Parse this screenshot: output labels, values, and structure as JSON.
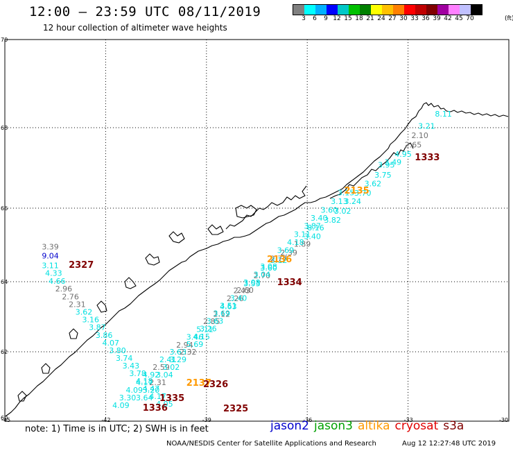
{
  "header": {
    "title": "12:00 — 23:59 UTC 08/11/2019",
    "subtitle": "12 hour collection of altimeter wave heights"
  },
  "scale": {
    "colors": [
      "#808080",
      "#00ffff",
      "#00b0ff",
      "#0000ff",
      "#00c8c8",
      "#00c000",
      "#008000",
      "#ffff00",
      "#ffc000",
      "#ff8000",
      "#ff0000",
      "#c00000",
      "#800000",
      "#a000a0",
      "#ff80ff",
      "#c0c0ff",
      "#000000"
    ],
    "labels": [
      "3",
      "6",
      "9",
      "12",
      "15",
      "18",
      "21",
      "24",
      "27",
      "30",
      "33",
      "36",
      "39",
      "42",
      "45",
      "70"
    ],
    "unit": "(ft)"
  },
  "axes": {
    "lat_labels": [
      "70",
      "68",
      "66",
      "64",
      "62",
      "60"
    ],
    "lon_labels": [
      "-45",
      "-42",
      "-39",
      "-36",
      "-33",
      "-30"
    ]
  },
  "colors": {
    "cyan": "#00e0e0",
    "gray": "#707070",
    "blue": "#0000cc",
    "orange": "#ff9900",
    "darkred": "#800000",
    "green": "#00a000",
    "red": "#e00000"
  },
  "map_data": {
    "observations": [
      {
        "lon": -32.2,
        "lat": 68.25,
        "value": "8.11",
        "color": "cyan"
      },
      {
        "lon": -32.7,
        "lat": 67.97,
        "value": "3.21",
        "color": "cyan"
      },
      {
        "lon": -32.9,
        "lat": 67.74,
        "value": "2.10",
        "color": "gray"
      },
      {
        "lon": -33.1,
        "lat": 67.51,
        "value": "2.65",
        "color": "gray"
      },
      {
        "lon": -33.4,
        "lat": 67.28,
        "value": "4.95",
        "color": "cyan"
      },
      {
        "lon": -33.7,
        "lat": 67.08,
        "value": "3.49",
        "color": "cyan"
      },
      {
        "lon": -33.9,
        "lat": 67.01,
        "value": "3.95",
        "color": "cyan"
      },
      {
        "lon": -34.0,
        "lat": 66.76,
        "value": "3.75",
        "color": "cyan"
      },
      {
        "lon": -34.3,
        "lat": 66.54,
        "value": "3.62",
        "color": "cyan"
      },
      {
        "lon": -34.6,
        "lat": 66.31,
        "value": "3.70",
        "color": "cyan"
      },
      {
        "lon": -34.9,
        "lat": 66.1,
        "value": "3.24",
        "color": "cyan"
      },
      {
        "lon": -35.2,
        "lat": 65.85,
        "value": "3.02",
        "color": "cyan"
      },
      {
        "lon": -35.5,
        "lat": 65.6,
        "value": "3.82",
        "color": "cyan"
      },
      {
        "lon": -36.0,
        "lat": 65.4,
        "value": "8.16",
        "color": "cyan"
      },
      {
        "lon": -36.1,
        "lat": 65.16,
        "value": "3.40",
        "color": "cyan"
      },
      {
        "lon": -36.4,
        "lat": 64.95,
        "value": "1.89",
        "color": "gray"
      },
      {
        "lon": -36.8,
        "lat": 64.72,
        "value": "2.39",
        "color": "gray"
      },
      {
        "lon": -37.1,
        "lat": 64.51,
        "value": "3.12",
        "color": "cyan"
      },
      {
        "lon": -37.4,
        "lat": 64.3,
        "value": "3.60",
        "color": "cyan"
      },
      {
        "lon": -37.6,
        "lat": 64.09,
        "value": "2.70",
        "color": "gray"
      },
      {
        "lon": -37.9,
        "lat": 63.87,
        "value": "3.53",
        "color": "cyan"
      },
      {
        "lon": -38.2,
        "lat": 63.67,
        "value": "2.43",
        "color": "gray"
      },
      {
        "lon": -38.4,
        "lat": 63.45,
        "value": "2.26",
        "color": "gray"
      },
      {
        "lon": -38.6,
        "lat": 63.22,
        "value": "4.63",
        "color": "cyan"
      },
      {
        "lon": -38.8,
        "lat": 63.0,
        "value": "2.12",
        "color": "gray"
      },
      {
        "lon": -39.1,
        "lat": 62.79,
        "value": "2.85",
        "color": "gray"
      },
      {
        "lon": -39.3,
        "lat": 62.56,
        "value": "5.11",
        "color": "cyan"
      },
      {
        "lon": -39.6,
        "lat": 62.35,
        "value": "3.46",
        "color": "cyan"
      },
      {
        "lon": -39.9,
        "lat": 62.12,
        "value": "2.94",
        "color": "gray"
      },
      {
        "lon": -40.1,
        "lat": 61.92,
        "value": "3.63",
        "color": "cyan"
      },
      {
        "lon": -40.4,
        "lat": 61.7,
        "value": "2.41",
        "color": "cyan"
      },
      {
        "lon": -40.6,
        "lat": 61.48,
        "value": "2.59",
        "color": "gray"
      },
      {
        "lon": -40.9,
        "lat": 61.26,
        "value": "4.92",
        "color": "cyan"
      },
      {
        "lon": -41.1,
        "lat": 61.04,
        "value": "4.17",
        "color": "cyan"
      },
      {
        "lon": -41.4,
        "lat": 60.82,
        "value": "4.09",
        "color": "cyan"
      },
      {
        "lon": -41.6,
        "lat": 60.6,
        "value": "3.30",
        "color": "cyan"
      },
      {
        "lon": -41.8,
        "lat": 60.38,
        "value": "4.09",
        "color": "cyan"
      },
      {
        "lon": -35.1,
        "lat": 66.32,
        "value": "3.15",
        "color": "cyan"
      },
      {
        "lon": -35.3,
        "lat": 66.1,
        "value": "3.13",
        "color": "cyan"
      },
      {
        "lon": -35.6,
        "lat": 65.88,
        "value": "3.60",
        "color": "cyan"
      },
      {
        "lon": -35.9,
        "lat": 65.66,
        "value": "3.40",
        "color": "cyan"
      },
      {
        "lon": -36.1,
        "lat": 65.44,
        "value": "3.87",
        "color": "cyan"
      },
      {
        "lon": -36.4,
        "lat": 65.22,
        "value": "3.11",
        "color": "cyan"
      },
      {
        "lon": -36.6,
        "lat": 65.0,
        "value": "4.18",
        "color": "cyan"
      },
      {
        "lon": -36.9,
        "lat": 64.78,
        "value": "3.69",
        "color": "cyan"
      },
      {
        "lon": -37.1,
        "lat": 64.56,
        "value": "2.77",
        "color": "gray"
      },
      {
        "lon": -37.4,
        "lat": 64.34,
        "value": "3.08",
        "color": "cyan"
      },
      {
        "lon": -37.6,
        "lat": 64.12,
        "value": "3.04",
        "color": "cyan"
      },
      {
        "lon": -37.9,
        "lat": 63.9,
        "value": "3.08",
        "color": "cyan"
      },
      {
        "lon": -38.1,
        "lat": 63.68,
        "value": "2.60",
        "color": "gray"
      },
      {
        "lon": -38.3,
        "lat": 63.46,
        "value": "3.40",
        "color": "cyan"
      },
      {
        "lon": -38.6,
        "lat": 63.24,
        "value": "3.51",
        "color": "cyan"
      },
      {
        "lon": -38.8,
        "lat": 63.02,
        "value": "3.69",
        "color": "cyan"
      },
      {
        "lon": -39.0,
        "lat": 62.8,
        "value": "3.63",
        "color": "cyan"
      },
      {
        "lon": -39.2,
        "lat": 62.58,
        "value": "3.26",
        "color": "cyan"
      },
      {
        "lon": -39.4,
        "lat": 62.36,
        "value": "4.15",
        "color": "cyan"
      },
      {
        "lon": -39.6,
        "lat": 62.14,
        "value": "5.69",
        "color": "cyan"
      },
      {
        "lon": -39.8,
        "lat": 61.92,
        "value": "2.32",
        "color": "gray"
      },
      {
        "lon": -40.1,
        "lat": 61.7,
        "value": "3.29",
        "color": "cyan"
      },
      {
        "lon": -40.3,
        "lat": 61.48,
        "value": "3.02",
        "color": "cyan"
      },
      {
        "lon": -40.5,
        "lat": 61.26,
        "value": "3.04",
        "color": "cyan"
      },
      {
        "lon": -40.7,
        "lat": 61.04,
        "value": "2.31",
        "color": "gray"
      },
      {
        "lon": -40.9,
        "lat": 60.82,
        "value": "3.20",
        "color": "cyan"
      },
      {
        "lon": -41.1,
        "lat": 60.6,
        "value": "3.64",
        "color": "cyan"
      },
      {
        "lon": -43.9,
        "lat": 64.88,
        "value": "3.39",
        "color": "gray"
      },
      {
        "lon": -43.9,
        "lat": 64.63,
        "value": "9.04",
        "color": "blue"
      },
      {
        "lon": -43.9,
        "lat": 64.37,
        "value": "3.11",
        "color": "cyan"
      },
      {
        "lon": -43.8,
        "lat": 64.16,
        "value": "4.33",
        "color": "cyan"
      },
      {
        "lon": -43.7,
        "lat": 63.94,
        "value": "4.66",
        "color": "cyan"
      },
      {
        "lon": -43.5,
        "lat": 63.72,
        "value": "2.96",
        "color": "gray"
      },
      {
        "lon": -43.3,
        "lat": 63.5,
        "value": "2.76",
        "color": "gray"
      },
      {
        "lon": -43.1,
        "lat": 63.28,
        "value": "2.31",
        "color": "gray"
      },
      {
        "lon": -42.9,
        "lat": 63.06,
        "value": "3.62",
        "color": "cyan"
      },
      {
        "lon": -42.7,
        "lat": 62.84,
        "value": "3.16",
        "color": "cyan"
      },
      {
        "lon": -42.5,
        "lat": 62.62,
        "value": "3.87",
        "color": "cyan"
      },
      {
        "lon": -42.3,
        "lat": 62.4,
        "value": "3.86",
        "color": "cyan"
      },
      {
        "lon": -42.1,
        "lat": 62.18,
        "value": "4.07",
        "color": "cyan"
      },
      {
        "lon": -41.9,
        "lat": 61.96,
        "value": "3.80",
        "color": "cyan"
      },
      {
        "lon": -41.7,
        "lat": 61.74,
        "value": "3.74",
        "color": "cyan"
      },
      {
        "lon": -41.5,
        "lat": 61.52,
        "value": "3.43",
        "color": "cyan"
      },
      {
        "lon": -41.3,
        "lat": 61.3,
        "value": "3.78",
        "color": "cyan"
      },
      {
        "lon": -41.1,
        "lat": 61.08,
        "value": "4.18",
        "color": "cyan"
      },
      {
        "lon": -40.9,
        "lat": 60.86,
        "value": "4.47",
        "color": "cyan"
      },
      {
        "lon": -40.7,
        "lat": 60.64,
        "value": "4.17",
        "color": "cyan"
      },
      {
        "lon": -40.5,
        "lat": 60.42,
        "value": "4.05",
        "color": "cyan"
      }
    ],
    "passes": [
      {
        "lon": -34.9,
        "lat": 66.36,
        "time": "2135",
        "color": "orange"
      },
      {
        "lon": -32.8,
        "lat": 67.19,
        "time": "1333",
        "color": "darkred"
      },
      {
        "lon": -37.2,
        "lat": 64.53,
        "time": "2136",
        "color": "orange"
      },
      {
        "lon": -36.9,
        "lat": 63.9,
        "time": "1334",
        "color": "darkred"
      },
      {
        "lon": -43.1,
        "lat": 64.38,
        "time": "2327",
        "color": "darkred"
      },
      {
        "lon": -39.6,
        "lat": 61.02,
        "time": "2137",
        "color": "orange"
      },
      {
        "lon": -39.1,
        "lat": 60.98,
        "time": "2326",
        "color": "darkred"
      },
      {
        "lon": -40.4,
        "lat": 60.58,
        "time": "1335",
        "color": "darkred"
      },
      {
        "lon": -40.9,
        "lat": 60.3,
        "time": "1336",
        "color": "darkred"
      },
      {
        "lon": -38.5,
        "lat": 60.28,
        "time": "2325",
        "color": "darkred"
      }
    ]
  },
  "note": "note:  1) Time is in UTC;  2) SWH is in feet",
  "legend": [
    {
      "name": "jason2",
      "color": "blue"
    },
    {
      "name": "jason3",
      "color": "green"
    },
    {
      "name": "altika",
      "color": "orange"
    },
    {
      "name": "cryosat",
      "color": "red"
    },
    {
      "name": "s3a",
      "color": "darkred"
    }
  ],
  "footer": {
    "org": "NOAA/NESDIS Center for Satellite Applications and Research",
    "timestamp": "Aug 12 12:27:48 UTC 2019"
  }
}
